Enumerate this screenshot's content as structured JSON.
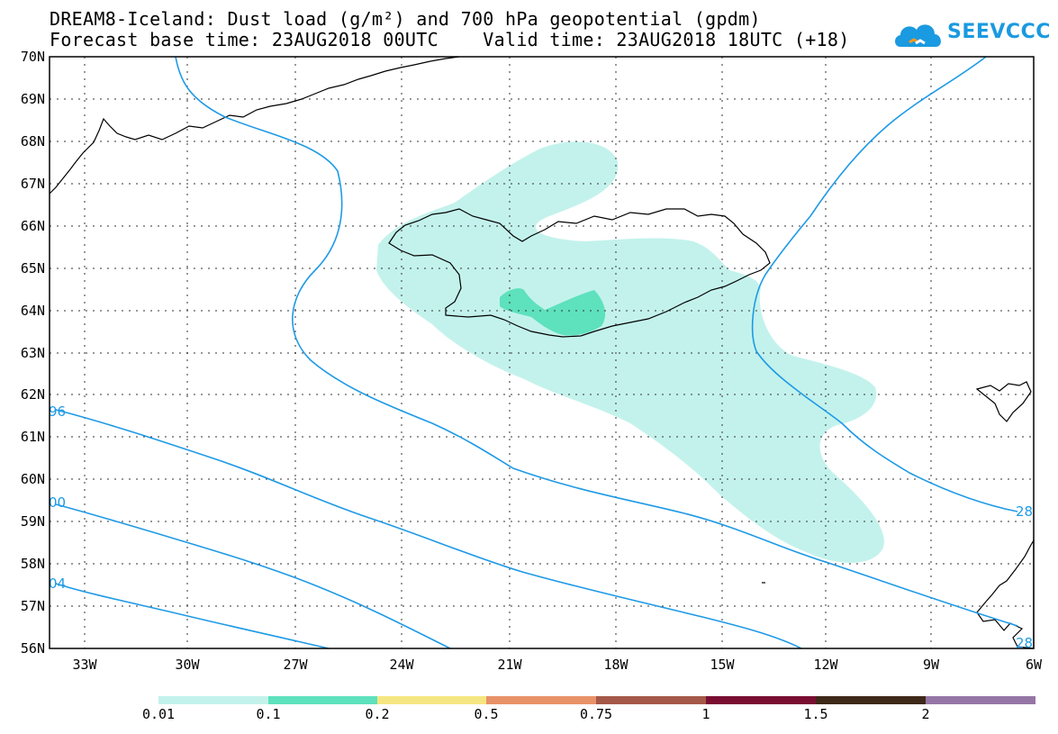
{
  "header": {
    "title_line1": "DREAM8-Iceland: Dust load (g/m²) and 700 hPa geopotential (gpdm)",
    "title_line2": "Forecast base time: 23AUG2018 00UTC    Valid time: 23AUG2018 18UTC (+18)"
  },
  "logo": {
    "text": "SEEVCCC",
    "icon": "cloud-icon",
    "color": "#1a9ae0"
  },
  "map": {
    "lat_labels": [
      "70N",
      "69N",
      "68N",
      "67N",
      "66N",
      "65N",
      "64N",
      "63N",
      "62N",
      "61N",
      "60N",
      "59N",
      "58N",
      "57N",
      "56N"
    ],
    "lon_labels": [
      "33W",
      "30W",
      "27W",
      "24W",
      "21W",
      "18W",
      "15W",
      "12W",
      "9W",
      "6W"
    ],
    "contour_labels": [
      "96",
      "00",
      "04",
      "28",
      "28"
    ],
    "colors": {
      "contour": "#1e9ae6",
      "coast": "#000000",
      "grid": "#333333"
    }
  },
  "colorbar": {
    "labels": [
      "0.01",
      "0.1",
      "0.2",
      "0.5",
      "0.75",
      "1",
      "1.5",
      "2"
    ],
    "colors": [
      "#c3f2ec",
      "#5ee1bd",
      "#f5e682",
      "#e89268",
      "#a55848",
      "#7a0e32",
      "#3e2818",
      "#9575a5"
    ]
  }
}
